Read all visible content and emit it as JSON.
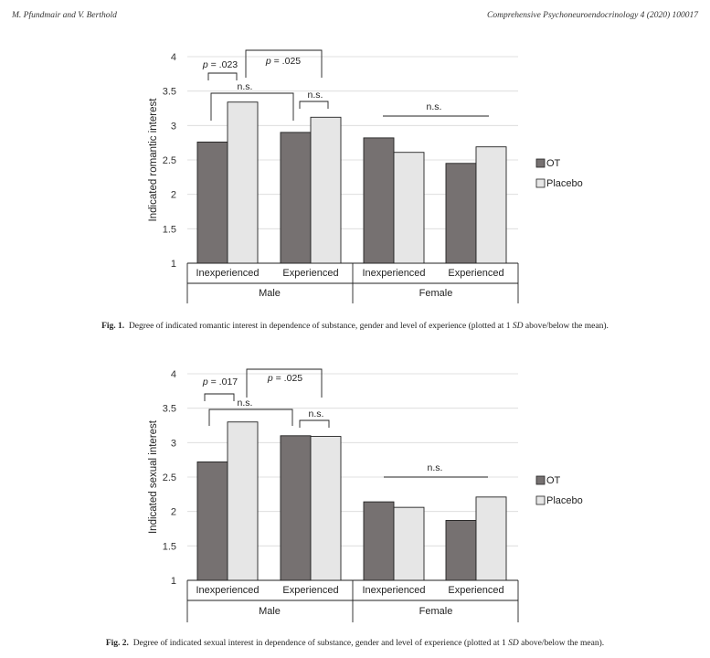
{
  "header": {
    "left": "M. Pfundmair and V. Berthold",
    "right": "Comprehensive Psychoneuroendocrinology 4 (2020) 100017"
  },
  "colors": {
    "ot": "#767171",
    "placebo": "#e6e6e6",
    "grid": "#d9d9d9",
    "stroke": "#222222"
  },
  "chart_data": [
    {
      "type": "bar",
      "ylabel": "Indicated romantic interest",
      "ylim": [
        1,
        4
      ],
      "yticks": [
        "1",
        "1.5",
        "2",
        "2.5",
        "3",
        "3.5",
        "4"
      ],
      "categories": [
        "Inexperienced",
        "Experienced",
        "Inexperienced",
        "Experienced"
      ],
      "groups": [
        "Male",
        "Female"
      ],
      "series": [
        {
          "name": "OT",
          "values": [
            2.76,
            2.9,
            2.82,
            2.45
          ]
        },
        {
          "name": "Placebo",
          "values": [
            3.34,
            3.12,
            2.61,
            2.69
          ]
        }
      ],
      "legend_position": "right",
      "annotations": [
        "p = .023",
        "p = .025",
        "n.s.",
        "n.s.",
        "n.s."
      ],
      "caption_label": "Fig. 1.",
      "caption_text_1": "Degree of indicated romantic interest in dependence of substance, gender and level of experience (plotted at 1",
      "caption_sd": "SD",
      "caption_text_2": "above/below the mean)."
    },
    {
      "type": "bar",
      "ylabel": "Indicated sexual interest",
      "ylim": [
        1,
        4
      ],
      "yticks": [
        "1",
        "1.5",
        "2",
        "2.5",
        "3",
        "3.5",
        "4"
      ],
      "categories": [
        "Inexperienced",
        "Experienced",
        "Inexperienced",
        "Experienced"
      ],
      "groups": [
        "Male",
        "Female"
      ],
      "series": [
        {
          "name": "OT",
          "values": [
            2.72,
            3.1,
            2.14,
            1.87
          ]
        },
        {
          "name": "Placebo",
          "values": [
            3.3,
            3.09,
            2.06,
            2.21
          ]
        }
      ],
      "legend_position": "right",
      "annotations": [
        "p = .017",
        "p = .025",
        "n.s.",
        "n.s.",
        "n.s."
      ],
      "caption_label": "Fig. 2.",
      "caption_text_1": "Degree of indicated sexual interest in dependence of substance, gender and level of experience (plotted at 1",
      "caption_sd": "SD",
      "caption_text_2": "above/below the mean)."
    }
  ]
}
